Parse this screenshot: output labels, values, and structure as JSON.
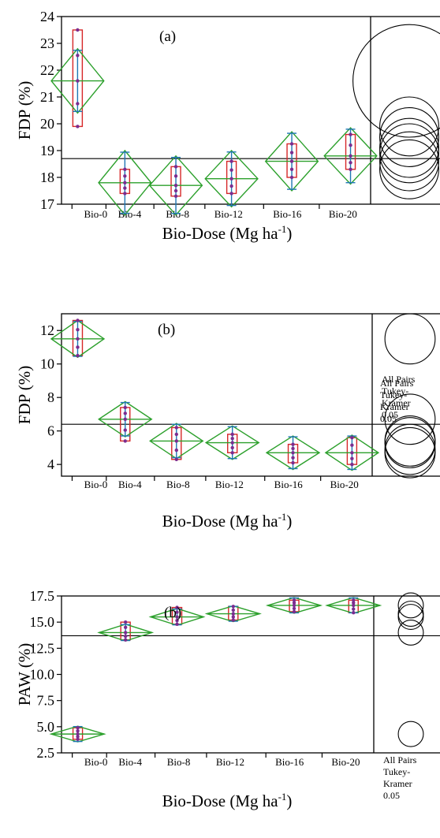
{
  "colors": {
    "diamond": "#2ca02c",
    "box": "#d62728",
    "whisker": "#1f77b4",
    "points": "#7b2c8f",
    "frame": "#000000"
  },
  "comparison_label": [
    "All Pairs",
    "Tukey-",
    "Kramer",
    "0.05"
  ],
  "x_superscript": "-1",
  "chart_data": [
    {
      "type": "scatter",
      "panel": "(a)",
      "ylabel": "FDP (%)",
      "xlabel": "Bio-Dose (Mg ha",
      "categories": [
        "Bio-0",
        "Bio-4",
        "Bio-8",
        "Bio-12",
        "Bio-16",
        "Bio-20"
      ],
      "ylim": [
        17,
        24
      ],
      "yticks": [
        "17",
        "18",
        "19",
        "20",
        "21",
        "22",
        "23",
        "24"
      ],
      "grand_mean": 18.7,
      "means": [
        21.6,
        17.8,
        17.7,
        17.95,
        18.6,
        18.8
      ],
      "ci_half": [
        1.2,
        1.2,
        1.1,
        1.05,
        1.1,
        1.05
      ],
      "box_low": [
        19.9,
        17.4,
        17.3,
        17.4,
        18.0,
        18.3
      ],
      "box_high": [
        23.5,
        18.3,
        18.4,
        18.6,
        19.25,
        19.6
      ],
      "circles": [
        {
          "center": 21.6,
          "radius": 2.1
        },
        {
          "center": 19.9,
          "radius": 1.1
        },
        {
          "center": 19.5,
          "radius": 1.1
        },
        {
          "center": 19.1,
          "radius": 1.1
        },
        {
          "center": 18.9,
          "radius": 1.1
        },
        {
          "center": 18.6,
          "radius": 1.1
        },
        {
          "center": 18.3,
          "radius": 1.1
        }
      ]
    },
    {
      "type": "scatter",
      "panel": "(b)",
      "ylabel": "FDP (%)",
      "xlabel": "Bio-Dose (Mg ha",
      "categories": [
        "Bio-0",
        "Bio-4",
        "Bio-8",
        "Bio-12",
        "Bio-16",
        "Bio-20"
      ],
      "ylim": [
        3.3,
        13
      ],
      "yticks": [
        "4",
        "6",
        "8",
        "10",
        "12"
      ],
      "grand_mean": 6.4,
      "means": [
        11.5,
        6.7,
        5.4,
        5.3,
        4.7,
        4.7
      ],
      "ci_half": [
        1.1,
        1.05,
        1.05,
        1.0,
        1.0,
        1.05
      ],
      "box_low": [
        10.5,
        5.4,
        4.3,
        4.7,
        4.1,
        4.0
      ],
      "box_high": [
        12.6,
        7.4,
        6.2,
        5.8,
        5.2,
        5.6
      ],
      "circles": [
        {
          "center": 11.5,
          "radius": 1.5
        },
        {
          "center": 6.7,
          "radius": 1.5
        },
        {
          "center": 5.4,
          "radius": 1.5
        },
        {
          "center": 5.3,
          "radius": 1.5
        },
        {
          "center": 4.9,
          "radius": 1.5
        },
        {
          "center": 4.7,
          "radius": 1.5
        }
      ]
    },
    {
      "type": "scatter",
      "panel": "(b)",
      "ylabel": "PAW (%)",
      "xlabel": "Bio-Dose (Mg ha",
      "categories": [
        "Bio-0",
        "Bio-4",
        "Bio-8",
        "Bio-12",
        "Bio-16",
        "Bio-20"
      ],
      "ylim": [
        2.5,
        17.5
      ],
      "yticks": [
        "2.5",
        "5.0",
        "7.5",
        "10.0",
        "12.5",
        "15.0",
        "17.5"
      ],
      "grand_mean": 13.7,
      "means": [
        4.3,
        14.0,
        15.5,
        15.8,
        16.6,
        16.6
      ],
      "ci_half": [
        0.75,
        0.8,
        0.8,
        0.75,
        0.75,
        0.75
      ],
      "box_low": [
        3.8,
        13.3,
        14.8,
        15.2,
        16.0,
        15.9
      ],
      "box_high": [
        4.9,
        15.0,
        16.4,
        16.5,
        17.1,
        17.1
      ],
      "circles": [
        {
          "center": 16.6,
          "radius": 1.2
        },
        {
          "center": 15.8,
          "radius": 1.2
        },
        {
          "center": 15.5,
          "radius": 1.2
        },
        {
          "center": 14.0,
          "radius": 1.2
        },
        {
          "center": 4.3,
          "radius": 1.2
        }
      ]
    }
  ]
}
